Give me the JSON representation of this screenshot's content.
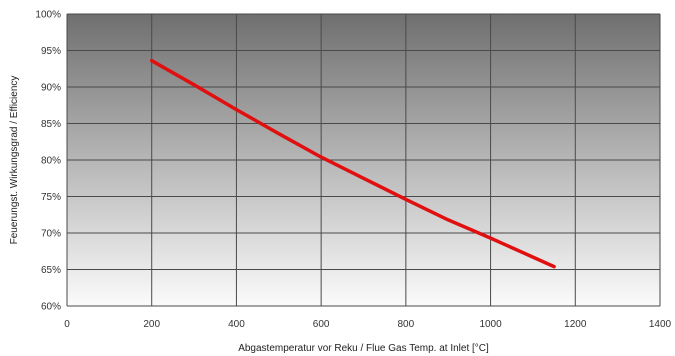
{
  "chart_data": {
    "type": "line",
    "title": "",
    "xlabel": "Abgastemperatur vor Reku / Flue Gas Temp. at Inlet [°C]",
    "ylabel": "Feuerungst. Wirkungsgrad / Efficiency",
    "xlim": [
      0,
      1400
    ],
    "ylim": [
      60,
      100
    ],
    "x_ticks": [
      0,
      200,
      400,
      600,
      800,
      1000,
      1200,
      1400
    ],
    "x_tick_labels": [
      "0",
      "200",
      "400",
      "600",
      "800",
      "1000",
      "1200",
      "1400"
    ],
    "y_ticks": [
      60,
      65,
      70,
      75,
      80,
      85,
      90,
      95,
      100
    ],
    "y_tick_labels": [
      "60%",
      "65%",
      "70%",
      "75%",
      "80%",
      "85%",
      "90%",
      "95%",
      "100%"
    ],
    "grid": true,
    "series": [
      {
        "color": "#e01010",
        "x": [
          200,
          300,
          400,
          500,
          600,
          700,
          800,
          900,
          1000,
          1100,
          1150
        ],
        "y": [
          93.6,
          90.3,
          86.9,
          83.6,
          80.4,
          77.5,
          74.6,
          71.8,
          69.3,
          66.7,
          65.4
        ]
      }
    ]
  }
}
